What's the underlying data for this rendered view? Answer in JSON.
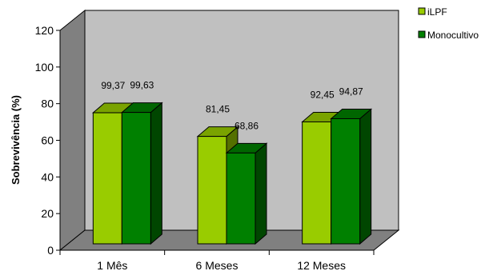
{
  "chart_data": {
    "type": "bar",
    "categories": [
      "1 Mês",
      "6 Meses",
      "12 Meses"
    ],
    "series": [
      {
        "name": "iLPF",
        "values": [
          99.37,
          81.45,
          92.45
        ],
        "value_labels": [
          "99,37",
          "81,45",
          "92,45"
        ],
        "color": "#99cc00"
      },
      {
        "name": "Monocultivo",
        "values": [
          99.63,
          68.86,
          94.87
        ],
        "value_labels": [
          "99,63",
          "68,86",
          "94,87"
        ],
        "color": "#008000"
      }
    ],
    "ylabel": "Sobrevivência (%)",
    "ylim": [
      0,
      120
    ],
    "yticks": [
      0,
      20,
      40,
      60,
      80,
      100,
      120
    ],
    "grid": false,
    "legend": "top-right",
    "three_d": true,
    "colors": {
      "wall": "#c0c0c0",
      "side_wall": "#808080",
      "floor": "#808080"
    }
  }
}
